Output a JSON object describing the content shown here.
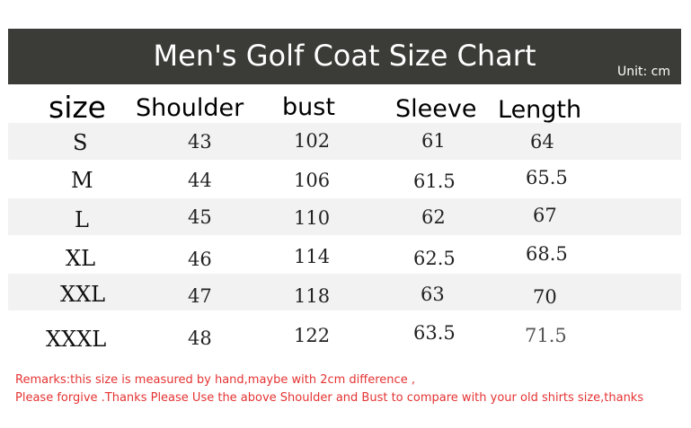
{
  "header": {
    "title": "Men's Golf Coat Size Chart",
    "unit": "Unit: cm"
  },
  "table": {
    "columns": [
      "size",
      "Shoulder",
      "bust",
      "Sleeve",
      "Length"
    ],
    "rows": [
      {
        "size": "S",
        "shoulder": "43",
        "bust": "102",
        "sleeve": "61",
        "length": "64"
      },
      {
        "size": "M",
        "shoulder": "44",
        "bust": "106",
        "sleeve": "61.5",
        "length": "65.5"
      },
      {
        "size": "L",
        "shoulder": "45",
        "bust": "110",
        "sleeve": "62",
        "length": "67"
      },
      {
        "size": "XL",
        "shoulder": "46",
        "bust": "114",
        "sleeve": "62.5",
        "length": "68.5"
      },
      {
        "size": "XXL",
        "shoulder": "47",
        "bust": "118",
        "sleeve": "63",
        "length": "70"
      },
      {
        "size": "XXXL",
        "shoulder": "48",
        "bust": "122",
        "sleeve": "63.5",
        "length": "71.5"
      }
    ]
  },
  "remarks": {
    "line1": "Remarks:this size is measured by hand,maybe with 2cm difference ,",
    "line2": "Please forgive .Thanks Please Use the above Shoulder and Bust to compare with your old shirts size,thanks"
  },
  "colors": {
    "header_bg": "#3b3c37",
    "stripe": "#f2f2f2",
    "remarks": "#e53333"
  }
}
